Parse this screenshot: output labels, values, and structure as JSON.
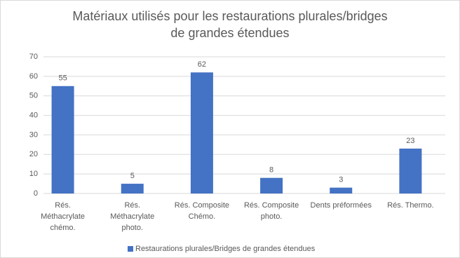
{
  "chart_data": {
    "type": "bar",
    "title": [
      "Matériaux utilisés pour les restaurations plurales/bridges",
      "de grandes étendues"
    ],
    "categories": [
      [
        "Rés.",
        "Méthacrylate",
        "chémo."
      ],
      [
        "Rés.",
        "Méthacrylate",
        "photo."
      ],
      [
        "Rés. Composite",
        "Chémo."
      ],
      [
        "Rés. Composite",
        "photo."
      ],
      [
        "Dents préformées"
      ],
      [
        "Rés. Thermo."
      ]
    ],
    "series": [
      {
        "name": "Restaurations plurales/Bridges de grandes étendues",
        "color": "#4472c4",
        "values": [
          55,
          5,
          62,
          8,
          3,
          23
        ]
      }
    ],
    "ylim": [
      0,
      70
    ],
    "yticks": [
      0,
      10,
      20,
      30,
      40,
      50,
      60,
      70
    ],
    "grid": true,
    "legend": "bottom"
  }
}
